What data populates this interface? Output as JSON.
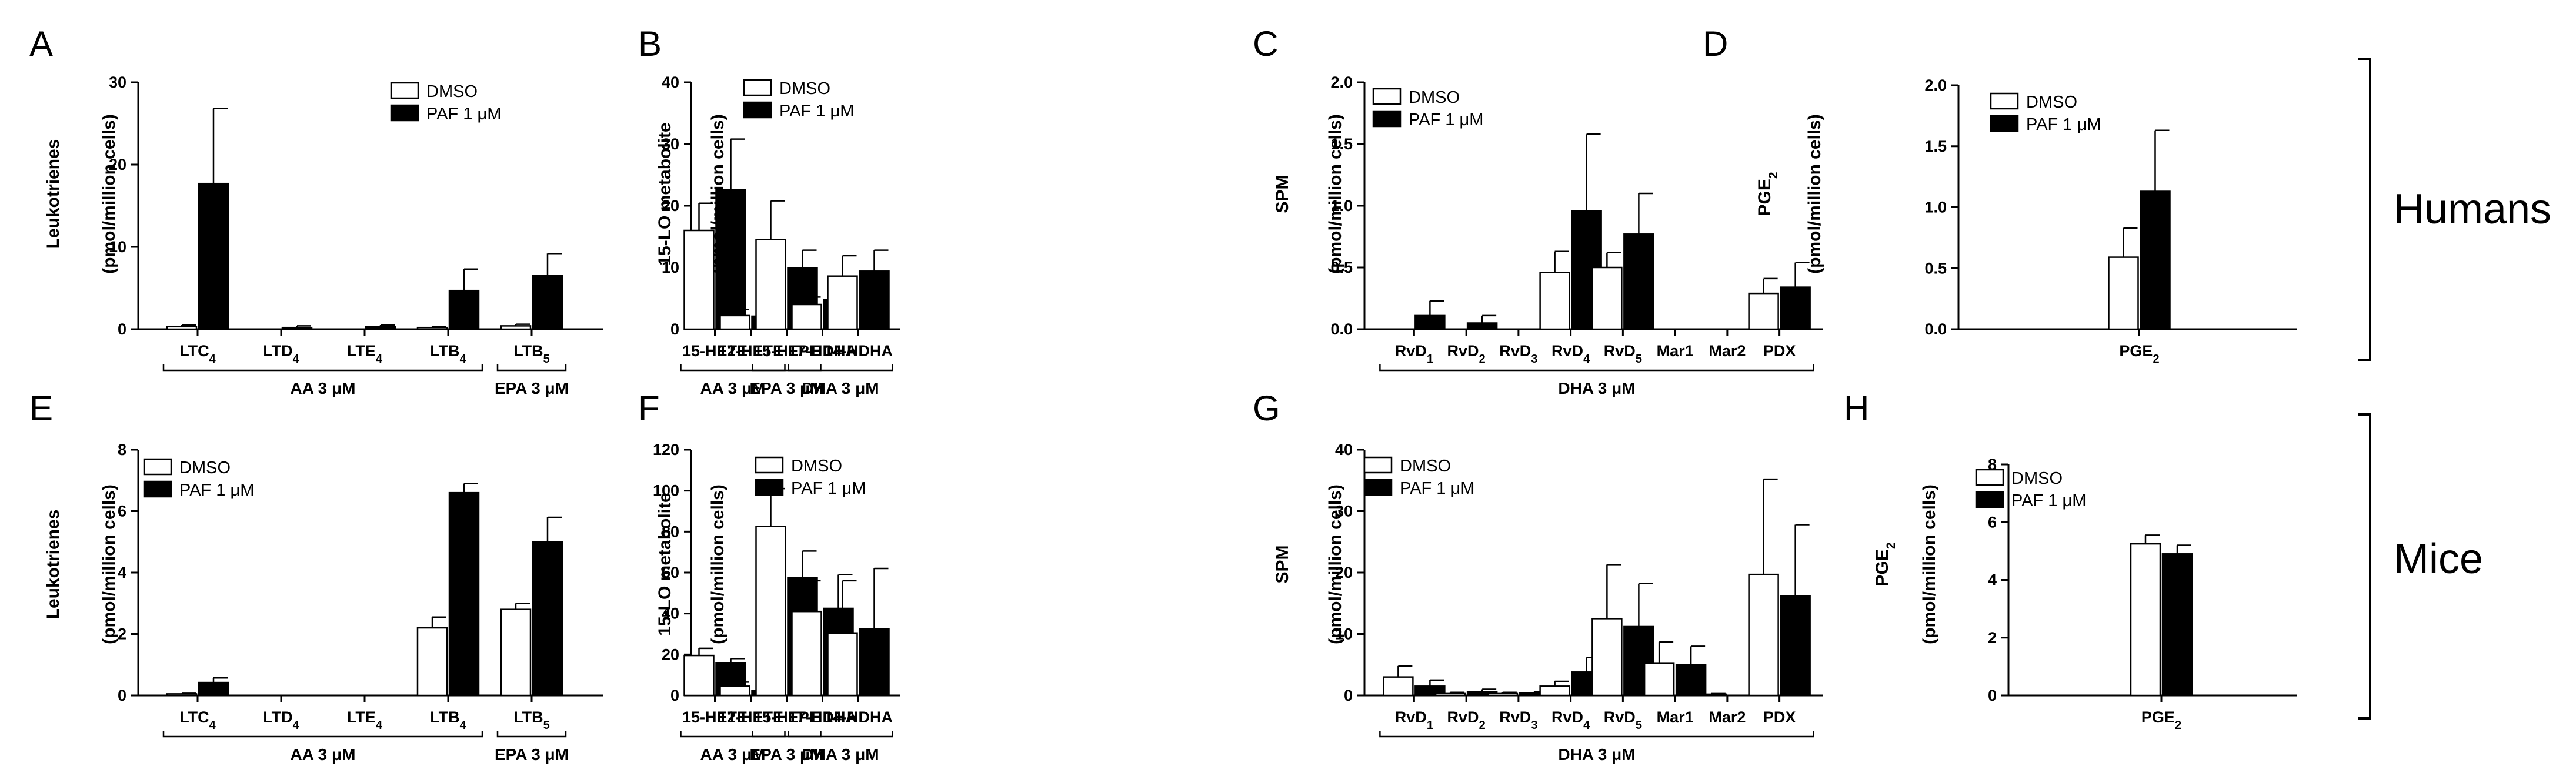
{
  "figure_labels": {
    "humans": "Humans",
    "mice": "Mice"
  },
  "legend": {
    "dmso": "DMSO",
    "paf": "PAF 1 μM"
  },
  "chart_data": [
    {
      "id": "A",
      "type": "bar",
      "panel_label": "A",
      "ylabel_line1": "Leukotrienes",
      "ylabel_line2": "(pmol/million cells)",
      "ylim": [
        0,
        30
      ],
      "yticks": [
        "0",
        "10",
        "20",
        "30"
      ],
      "categories": [
        {
          "base": "LTC",
          "sub": "4"
        },
        {
          "base": "LTD",
          "sub": "4"
        },
        {
          "base": "LTE",
          "sub": "4"
        },
        {
          "base": "LTB",
          "sub": "4"
        },
        {
          "base": "LTB",
          "sub": "5"
        }
      ],
      "series": [
        {
          "name": "DMSO",
          "values": [
            0.3,
            0,
            0,
            0.2,
            0.4
          ],
          "errors": [
            0.2,
            0,
            0,
            0.1,
            0.2
          ]
        },
        {
          "name": "PAF 1 μM",
          "values": [
            17.7,
            0.2,
            0.3,
            4.7,
            6.5
          ],
          "errors": [
            9.1,
            0.2,
            0.2,
            2.6,
            2.7
          ]
        }
      ],
      "groups": [
        {
          "label": "AA 3 μM",
          "start": 0,
          "end": 3
        },
        {
          "label": "EPA 3 μM",
          "start": 4,
          "end": 4
        }
      ]
    },
    {
      "id": "B",
      "type": "bar",
      "panel_label": "B",
      "ylabel_line1": "15-LO metabolite",
      "ylabel_line2": "(pmol/million cells)",
      "ylim": [
        0,
        40
      ],
      "yticks": [
        "0",
        "10",
        "20",
        "30",
        "40"
      ],
      "categories": [
        {
          "base": "15-HETE",
          "sub": ""
        },
        {
          "base": "12-HETE",
          "sub": ""
        },
        {
          "base": "15-HEPE",
          "sub": ""
        },
        {
          "base": "17-HDHA",
          "sub": ""
        },
        {
          "base": "14-HDHA",
          "sub": ""
        }
      ],
      "series": [
        {
          "name": "DMSO",
          "values": [
            16,
            2.2,
            14.5,
            4,
            8.6
          ],
          "errors": [
            4.4,
            1,
            6.3,
            1.2,
            3.3
          ]
        },
        {
          "name": "PAF 1 μM",
          "values": [
            22.6,
            2.1,
            9.9,
            4.8,
            9.4
          ],
          "errors": [
            8.2,
            1.6,
            2.9,
            1.7,
            3.4
          ]
        }
      ],
      "groups": [
        {
          "label": "AA 3 μM",
          "start": 0,
          "end": 1
        },
        {
          "label": "EPA 3 μM",
          "start": 2,
          "end": 2
        },
        {
          "label": "DHA 3 μM",
          "start": 3,
          "end": 4
        }
      ]
    },
    {
      "id": "C",
      "type": "bar",
      "panel_label": "C",
      "ylabel_line1": "SPM",
      "ylabel_line2": "(pmol/million cells)",
      "ylim": [
        0,
        2
      ],
      "yticks": [
        "0.0",
        "0.5",
        "1.0",
        "1.5",
        "2.0"
      ],
      "categories": [
        {
          "base": "RvD",
          "sub": "1"
        },
        {
          "base": "RvD",
          "sub": "2"
        },
        {
          "base": "RvD",
          "sub": "3"
        },
        {
          "base": "RvD",
          "sub": "4"
        },
        {
          "base": "RvD",
          "sub": "5"
        },
        {
          "base": "Mar1",
          "sub": ""
        },
        {
          "base": "Mar2",
          "sub": ""
        },
        {
          "base": "PDX",
          "sub": ""
        }
      ],
      "series": [
        {
          "name": "DMSO",
          "values": [
            0,
            0,
            0,
            0.46,
            0.5,
            0,
            0,
            0.29
          ],
          "errors": [
            0,
            0,
            0,
            0.17,
            0.12,
            0,
            0,
            0.12
          ]
        },
        {
          "name": "PAF 1 μM",
          "values": [
            0.11,
            0.05,
            0,
            0.96,
            0.77,
            0,
            0,
            0.34
          ],
          "errors": [
            0.12,
            0.06,
            0,
            0.62,
            0.33,
            0,
            0,
            0.2
          ]
        }
      ],
      "groups": [
        {
          "label": "DHA 3 μM",
          "start": 0,
          "end": 7
        }
      ]
    },
    {
      "id": "D",
      "type": "bar",
      "panel_label": "D",
      "ylabel_line1": "PGE",
      "ylabel_line1_sub": "2",
      "ylabel_line2": "(pmol/million cells)",
      "ylim": [
        0,
        2
      ],
      "yticks": [
        "0.0",
        "0.5",
        "1.0",
        "1.5",
        "2.0"
      ],
      "categories": [
        {
          "base": "PGE",
          "sub": "2"
        }
      ],
      "series": [
        {
          "name": "DMSO",
          "values": [
            0.59
          ],
          "errors": [
            0.24
          ]
        },
        {
          "name": "PAF 1 μM",
          "values": [
            1.13
          ],
          "errors": [
            0.5
          ]
        }
      ],
      "groups": []
    },
    {
      "id": "E",
      "type": "bar",
      "panel_label": "E",
      "ylabel_line1": "Leukotrienes",
      "ylabel_line2": "(pmol/million cells)",
      "ylim": [
        0,
        8
      ],
      "yticks": [
        "0",
        "2",
        "4",
        "6",
        "8"
      ],
      "categories": [
        {
          "base": "LTC",
          "sub": "4"
        },
        {
          "base": "LTD",
          "sub": "4"
        },
        {
          "base": "LTE",
          "sub": "4"
        },
        {
          "base": "LTB",
          "sub": "4"
        },
        {
          "base": "LTB",
          "sub": "5"
        }
      ],
      "series": [
        {
          "name": "DMSO",
          "values": [
            0.05,
            0,
            0,
            2.2,
            2.8
          ],
          "errors": [
            0.02,
            0,
            0,
            0.35,
            0.2
          ]
        },
        {
          "name": "PAF 1 μM",
          "values": [
            0.42,
            0,
            0,
            6.6,
            5
          ],
          "errors": [
            0.15,
            0,
            0,
            0.3,
            0.8
          ]
        }
      ],
      "groups": [
        {
          "label": "AA 3 μM",
          "start": 0,
          "end": 3
        },
        {
          "label": "EPA 3 μM",
          "start": 4,
          "end": 4
        }
      ]
    },
    {
      "id": "F",
      "type": "bar",
      "panel_label": "F",
      "ylabel_line1": "15-LO metabolite",
      "ylabel_line2": "(pmol/million cells)",
      "ylim": [
        0,
        120
      ],
      "yticks": [
        "0",
        "20",
        "40",
        "60",
        "80",
        "100",
        "120"
      ],
      "categories": [
        {
          "base": "15-HETE",
          "sub": ""
        },
        {
          "base": "12-HETE",
          "sub": ""
        },
        {
          "base": "15-HEPE",
          "sub": ""
        },
        {
          "base": "17-HDHA",
          "sub": ""
        },
        {
          "base": "14-HDHA",
          "sub": ""
        }
      ],
      "series": [
        {
          "name": "DMSO",
          "values": [
            19.5,
            4.5,
            82.5,
            41,
            30.5
          ],
          "errors": [
            3.5,
            2,
            18.5,
            15,
            25.5
          ]
        },
        {
          "name": "PAF 1 μM",
          "values": [
            16,
            2.5,
            57.5,
            42.5,
            32.5
          ],
          "errors": [
            2,
            1.3,
            13,
            16.5,
            29.5
          ]
        }
      ],
      "groups": [
        {
          "label": "AA 3 μM",
          "start": 0,
          "end": 1
        },
        {
          "label": "EPA 3 μM",
          "start": 2,
          "end": 2
        },
        {
          "label": "DHA 3 μM",
          "start": 3,
          "end": 4
        }
      ]
    },
    {
      "id": "G",
      "type": "bar",
      "panel_label": "G",
      "ylabel_line1": "SPM",
      "ylabel_line2": "(pmol/million cells)",
      "ylim": [
        0,
        40
      ],
      "yticks": [
        "0",
        "10",
        "20",
        "30",
        "40"
      ],
      "categories": [
        {
          "base": "RvD",
          "sub": "1"
        },
        {
          "base": "RvD",
          "sub": "2"
        },
        {
          "base": "RvD",
          "sub": "3"
        },
        {
          "base": "RvD",
          "sub": "4"
        },
        {
          "base": "RvD",
          "sub": "5"
        },
        {
          "base": "Mar1",
          "sub": ""
        },
        {
          "base": "Mar2",
          "sub": ""
        },
        {
          "base": "PDX",
          "sub": ""
        }
      ],
      "series": [
        {
          "name": "DMSO",
          "values": [
            3,
            0.3,
            0.3,
            1.5,
            12.5,
            5.2,
            0.2,
            19.7
          ],
          "errors": [
            1.8,
            0.2,
            0.2,
            0.8,
            8.8,
            3.5,
            0.1,
            15.5
          ]
        },
        {
          "name": "PAF 1 μM",
          "values": [
            1.5,
            0.6,
            0.4,
            3.8,
            11.2,
            5,
            0,
            16.2
          ],
          "errors": [
            1,
            0.4,
            0.2,
            2.4,
            7,
            3,
            0,
            11.6
          ]
        }
      ],
      "groups": [
        {
          "label": "DHA 3 μM",
          "start": 0,
          "end": 7
        }
      ]
    },
    {
      "id": "H",
      "type": "bar",
      "panel_label": "H",
      "ylabel_line1": "PGE",
      "ylabel_line1_sub": "2",
      "ylabel_line2": "(pmol/million cells)",
      "ylim": [
        0,
        8
      ],
      "yticks": [
        "0",
        "2",
        "4",
        "6",
        "8"
      ],
      "categories": [
        {
          "base": "PGE",
          "sub": "2"
        }
      ],
      "series": [
        {
          "name": "DMSO",
          "values": [
            5.25
          ],
          "errors": [
            0.3
          ]
        },
        {
          "name": "PAF 1 μM",
          "values": [
            4.9
          ],
          "errors": [
            0.3
          ]
        }
      ],
      "groups": []
    }
  ]
}
